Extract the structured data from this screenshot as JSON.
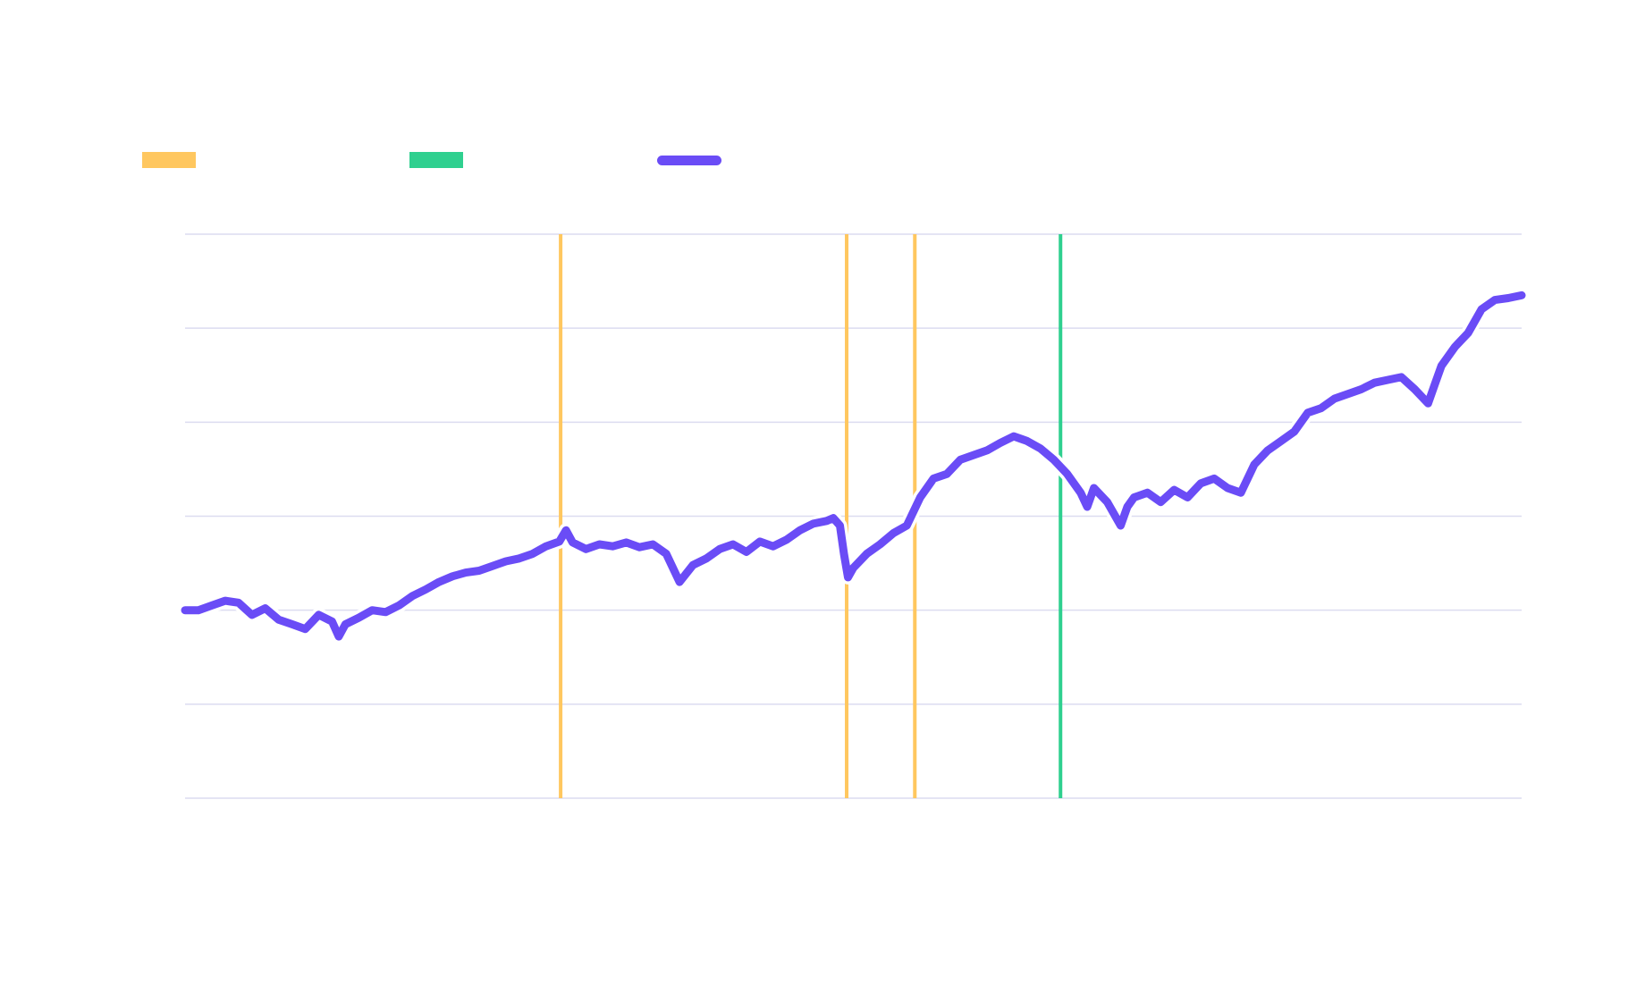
{
  "colors": {
    "background": "#ffffff",
    "grid": "#dcdcf0",
    "event_a": "#ffc75f",
    "event_b": "#2fd08f",
    "series": "#6a4cf6"
  },
  "legend": [
    {
      "label": "",
      "color": "#ffc75f",
      "shape": "band"
    },
    {
      "label": "",
      "color": "#2fd08f",
      "shape": "band"
    },
    {
      "label": "",
      "color": "#6a4cf6",
      "shape": "line"
    }
  ],
  "chart_data": {
    "type": "line",
    "title": "",
    "xlabel": "",
    "ylabel": "",
    "xlim": [
      0,
      100
    ],
    "ylim": [
      0,
      6
    ],
    "grid": true,
    "legend_position": "top-left",
    "y_gridlines": [
      0,
      1,
      2,
      3,
      4,
      5,
      6
    ],
    "vertical_markers": [
      {
        "x": 28.1,
        "color": "#ffc75f"
      },
      {
        "x": 49.5,
        "color": "#ffc75f"
      },
      {
        "x": 54.6,
        "color": "#ffc75f"
      },
      {
        "x": 65.5,
        "color": "#2fd08f"
      }
    ],
    "series": [
      {
        "color": "#6a4cf6",
        "x": [
          0,
          1,
          2,
          3,
          4,
          5,
          6,
          7,
          8,
          9,
          10,
          11,
          11.5,
          12,
          13,
          14,
          15,
          16,
          17,
          18,
          19,
          20,
          21,
          22,
          23,
          24,
          25,
          26,
          27,
          28,
          28.5,
          29,
          30,
          31,
          32,
          33,
          34,
          35,
          36,
          37,
          38,
          39,
          40,
          41,
          42,
          43,
          44,
          45,
          46,
          47,
          48,
          48.5,
          49,
          49.3,
          49.6,
          50,
          51,
          52,
          53,
          54,
          55,
          56,
          57,
          58,
          59,
          60,
          61,
          62,
          63,
          64,
          65,
          66,
          67,
          67.5,
          68,
          69,
          70,
          70.5,
          71,
          72,
          73,
          74,
          75,
          76,
          77,
          78,
          79,
          79.5,
          80,
          81,
          82,
          83,
          84,
          85,
          86,
          87,
          88,
          89,
          90,
          91,
          92,
          93,
          93.5,
          94,
          95,
          96,
          97,
          98,
          99,
          100
        ],
        "values": [
          2.0,
          2.0,
          2.05,
          2.1,
          2.08,
          1.95,
          2.02,
          1.9,
          1.85,
          1.8,
          1.95,
          1.88,
          1.72,
          1.85,
          1.92,
          2.0,
          1.98,
          2.05,
          2.15,
          2.22,
          2.3,
          2.36,
          2.4,
          2.42,
          2.47,
          2.52,
          2.55,
          2.6,
          2.68,
          2.73,
          2.85,
          2.72,
          2.65,
          2.7,
          2.68,
          2.72,
          2.67,
          2.7,
          2.6,
          2.3,
          2.48,
          2.55,
          2.65,
          2.7,
          2.62,
          2.73,
          2.68,
          2.75,
          2.85,
          2.92,
          2.95,
          2.98,
          2.9,
          2.6,
          2.35,
          2.45,
          2.6,
          2.7,
          2.82,
          2.9,
          3.2,
          3.4,
          3.45,
          3.6,
          3.65,
          3.7,
          3.78,
          3.85,
          3.8,
          3.72,
          3.6,
          3.45,
          3.25,
          3.1,
          3.3,
          3.15,
          2.9,
          3.1,
          3.2,
          3.25,
          3.15,
          3.28,
          3.2,
          3.35,
          3.4,
          3.3,
          3.25,
          3.4,
          3.55,
          3.7,
          3.8,
          3.9,
          4.1,
          4.15,
          4.25,
          4.3,
          4.35,
          4.42,
          4.45,
          4.48,
          4.35,
          4.2,
          4.4,
          4.6,
          4.8,
          4.95,
          5.2,
          5.3,
          5.32,
          5.35
        ]
      }
    ]
  }
}
